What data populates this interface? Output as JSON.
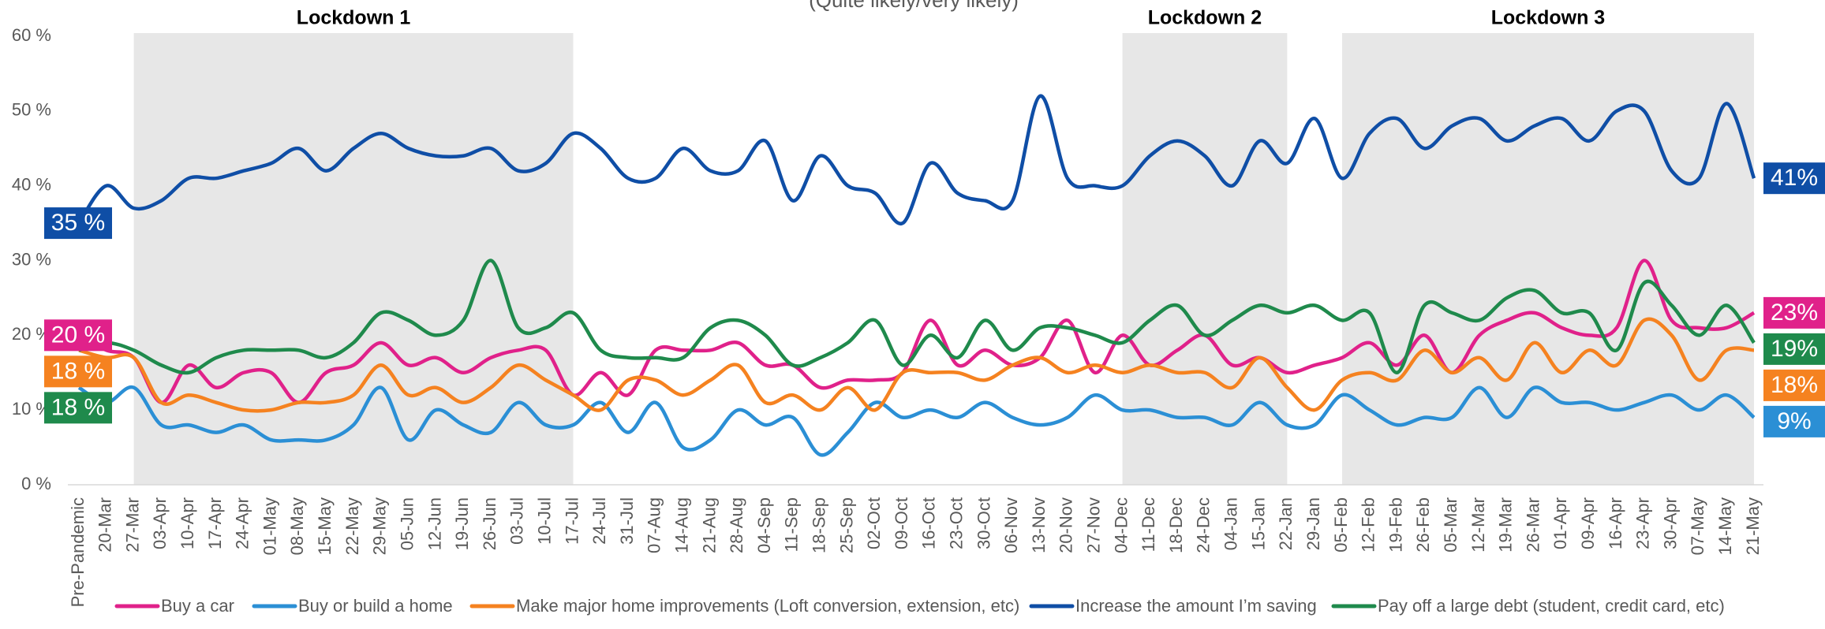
{
  "chart_data": {
    "type": "line",
    "subtitle": "(Quite likely/very likely)",
    "categories": [
      "Pre-Pandemic",
      "20-Mar",
      "27-Mar",
      "03-Apr",
      "10-Apr",
      "17-Apr",
      "24-Apr",
      "01-May",
      "08-May",
      "15-May",
      "22-May",
      "29-May",
      "05-Jun",
      "12-Jun",
      "19-Jun",
      "26-Jun",
      "03-Jul",
      "10-Jul",
      "17-Jul",
      "24-Jul",
      "31-Jul",
      "07-Aug",
      "14-Aug",
      "21-Aug",
      "28-Aug",
      "04-Sep",
      "11-Sep",
      "18-Sep",
      "25-Sep",
      "02-Oct",
      "09-Oct",
      "16-Oct",
      "23-Oct",
      "30-Oct",
      "06-Nov",
      "13-Nov",
      "20-Nov",
      "27-Nov",
      "04-Dec",
      "11-Dec",
      "18-Dec",
      "24-Dec",
      "04-Jan",
      "15-Jan",
      "22-Jan",
      "29-Jan",
      "05-Feb",
      "12-Feb",
      "19-Feb",
      "26-Feb",
      "05-Mar",
      "12-Mar",
      "19-Mar",
      "26-Mar",
      "01-Apr",
      "09-Apr",
      "16-Apr",
      "23-Apr",
      "30-Apr",
      "07-May",
      "14-May",
      "21-May"
    ],
    "series": [
      {
        "name": "Buy a car",
        "color": "#e0218a",
        "values": [
          20,
          18,
          17,
          11,
          16,
          13,
          15,
          15,
          11,
          15,
          16,
          19,
          16,
          17,
          15,
          17,
          18,
          18,
          12,
          15,
          12,
          18,
          18,
          18,
          19,
          16,
          16,
          13,
          14,
          14,
          15,
          22,
          16,
          18,
          16,
          17,
          22,
          15,
          20,
          16,
          18,
          20,
          16,
          17,
          15,
          16,
          17,
          19,
          16,
          20,
          15,
          20,
          22,
          23,
          21,
          20,
          21,
          30,
          22,
          21,
          21,
          23
        ],
        "value_labels": [
          "20 %",
          null,
          null,
          null,
          null,
          null,
          null,
          null,
          null,
          null,
          null,
          null,
          null,
          null,
          null,
          null,
          null,
          null,
          null,
          null,
          null,
          null,
          null,
          null,
          null,
          null,
          null,
          null,
          null,
          null,
          null,
          null,
          null,
          null,
          null,
          null,
          null,
          null,
          null,
          null,
          null,
          null,
          null,
          null,
          null,
          null,
          null,
          null,
          null,
          null,
          null,
          null,
          null,
          null,
          null,
          null,
          null,
          null,
          null,
          null,
          null,
          "23%"
        ]
      },
      {
        "name": "Buy or build a home",
        "color": "#2b8fd5",
        "values": [
          13,
          11,
          13,
          8,
          8,
          7,
          8,
          6,
          6,
          6,
          8,
          13,
          6,
          10,
          8,
          7,
          11,
          8,
          8,
          11,
          7,
          11,
          5,
          6,
          10,
          8,
          9,
          4,
          7,
          11,
          9,
          10,
          9,
          11,
          9,
          8,
          9,
          12,
          10,
          10,
          9,
          9,
          8,
          11,
          8,
          8,
          12,
          10,
          8,
          9,
          9,
          13,
          9,
          13,
          11,
          11,
          10,
          11,
          12,
          10,
          12,
          9
        ],
        "value_labels": [
          null,
          null,
          null,
          null,
          null,
          null,
          null,
          null,
          null,
          null,
          null,
          null,
          null,
          null,
          null,
          null,
          null,
          null,
          null,
          null,
          null,
          null,
          null,
          null,
          null,
          null,
          null,
          null,
          null,
          null,
          null,
          null,
          null,
          null,
          null,
          null,
          null,
          null,
          null,
          null,
          null,
          null,
          null,
          null,
          null,
          null,
          null,
          null,
          null,
          null,
          null,
          null,
          null,
          null,
          null,
          null,
          null,
          null,
          null,
          null,
          null,
          "9%"
        ]
      },
      {
        "name": "Make major home improvements (Loft conversion, extension, etc)",
        "color": "#f58220",
        "values": [
          18,
          17,
          17,
          11,
          12,
          11,
          10,
          10,
          11,
          11,
          12,
          16,
          12,
          13,
          11,
          13,
          16,
          14,
          12,
          10,
          14,
          14,
          12,
          14,
          16,
          11,
          12,
          10,
          13,
          10,
          15,
          15,
          15,
          14,
          16,
          17,
          15,
          16,
          15,
          16,
          15,
          15,
          13,
          17,
          13,
          10,
          14,
          15,
          14,
          18,
          15,
          17,
          14,
          19,
          15,
          18,
          16,
          22,
          20,
          14,
          18,
          18
        ],
        "value_labels": [
          "18 %",
          null,
          null,
          null,
          null,
          null,
          null,
          null,
          null,
          null,
          null,
          null,
          null,
          null,
          null,
          null,
          null,
          null,
          null,
          null,
          null,
          null,
          null,
          null,
          null,
          null,
          null,
          null,
          null,
          null,
          null,
          null,
          null,
          null,
          null,
          null,
          null,
          null,
          null,
          null,
          null,
          null,
          null,
          null,
          null,
          null,
          null,
          null,
          null,
          null,
          null,
          null,
          null,
          null,
          null,
          null,
          null,
          null,
          null,
          null,
          null,
          "18%"
        ]
      },
      {
        "name": "Increase the amount I’m saving",
        "color": "#0f4ea6",
        "values": [
          35,
          40,
          37,
          38,
          41,
          41,
          42,
          43,
          45,
          42,
          45,
          47,
          45,
          44,
          44,
          45,
          42,
          43,
          47,
          45,
          41,
          41,
          45,
          42,
          42,
          46,
          38,
          44,
          40,
          39,
          35,
          43,
          39,
          38,
          38,
          52,
          41,
          40,
          40,
          44,
          46,
          44,
          40,
          46,
          43,
          49,
          41,
          47,
          49,
          45,
          48,
          49,
          46,
          48,
          49,
          46,
          50,
          50,
          42,
          41,
          51,
          41
        ],
        "value_labels": [
          "35 %",
          null,
          null,
          null,
          null,
          null,
          null,
          null,
          null,
          null,
          null,
          null,
          null,
          null,
          null,
          null,
          null,
          null,
          null,
          null,
          null,
          null,
          null,
          null,
          null,
          null,
          null,
          null,
          null,
          null,
          null,
          null,
          null,
          null,
          null,
          null,
          null,
          null,
          null,
          null,
          null,
          null,
          null,
          null,
          null,
          null,
          null,
          null,
          null,
          null,
          null,
          null,
          null,
          null,
          null,
          null,
          null,
          null,
          null,
          null,
          null,
          "41%"
        ]
      },
      {
        "name": "Pay off a large debt (student, credit card, etc)",
        "color": "#1f8a4c",
        "values": [
          18,
          19,
          18,
          16,
          15,
          17,
          18,
          18,
          18,
          17,
          19,
          23,
          22,
          20,
          22,
          30,
          21,
          21,
          23,
          18,
          17,
          17,
          17,
          21,
          22,
          20,
          16,
          17,
          19,
          22,
          16,
          20,
          17,
          22,
          18,
          21,
          21,
          20,
          19,
          22,
          24,
          20,
          22,
          24,
          23,
          24,
          22,
          23,
          15,
          24,
          23,
          22,
          25,
          26,
          23,
          23,
          18,
          27,
          24,
          20,
          24,
          19
        ],
        "value_labels": [
          "18 %",
          null,
          null,
          null,
          null,
          null,
          null,
          null,
          null,
          null,
          null,
          null,
          null,
          null,
          null,
          null,
          null,
          null,
          null,
          null,
          null,
          null,
          null,
          null,
          null,
          null,
          null,
          null,
          null,
          null,
          null,
          null,
          null,
          null,
          null,
          null,
          null,
          null,
          null,
          null,
          null,
          null,
          null,
          null,
          null,
          null,
          null,
          null,
          null,
          null,
          null,
          null,
          null,
          null,
          null,
          null,
          null,
          null,
          null,
          null,
          null,
          "19%"
        ]
      }
    ],
    "shaded_periods": [
      {
        "label": "Lockdown 1",
        "start": "27-Mar",
        "end": "17-Jul"
      },
      {
        "label": "Lockdown 2",
        "start": "04-Dec",
        "end": "22-Jan"
      },
      {
        "label": "Lockdown 3",
        "start": "05-Feb",
        "end": "21-May"
      }
    ],
    "ylim": [
      0,
      60
    ],
    "yticks": [
      {
        "value": 0,
        "label": "0 %"
      },
      {
        "value": 10,
        "label": "10 %"
      },
      {
        "value": 20,
        "label": "20 %"
      },
      {
        "value": 30,
        "label": "30 %"
      },
      {
        "value": 40,
        "label": "40 %"
      },
      {
        "value": 50,
        "label": "50 %"
      },
      {
        "value": 60,
        "label": "60 %"
      }
    ],
    "grid": false,
    "legend": "bottom"
  }
}
